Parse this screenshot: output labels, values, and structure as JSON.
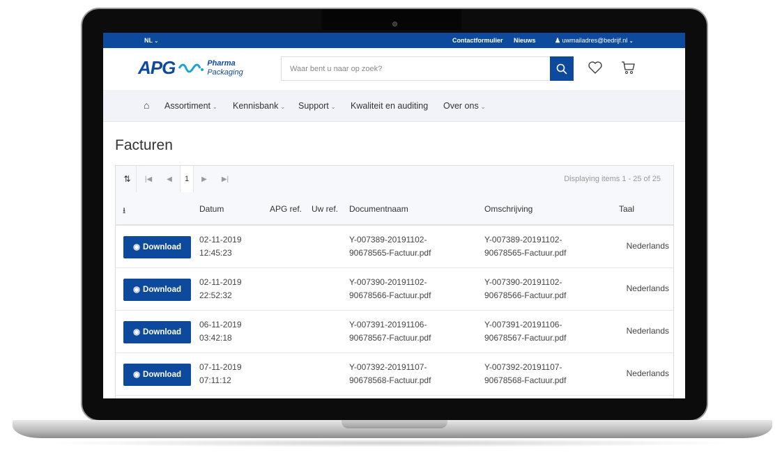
{
  "topbar": {
    "language": "NL",
    "contact": "Contactformulier",
    "news": "Nieuws",
    "user_email": "uwmailadres@bedrijf.nl"
  },
  "header": {
    "logo_main": "APG",
    "logo_line1": "Pharma",
    "logo_line2": "Packaging",
    "search_placeholder": "Waar bent u naar op zoek?"
  },
  "nav": {
    "items": [
      {
        "label": "Assortiment"
      },
      {
        "label": "Kennisbank"
      },
      {
        "label": "Support"
      },
      {
        "label": "Kwaliteit en auditing"
      },
      {
        "label": "Over ons"
      }
    ]
  },
  "page": {
    "title": "Facturen"
  },
  "table": {
    "current_page": "1",
    "info": "Displaying items 1 - 25 of 25",
    "columns": {
      "datum": "Datum",
      "apg_ref": "APG ref.",
      "uw_ref": "Uw ref.",
      "documentnaam": "Documentnaam",
      "omschrijving": "Omschrijving",
      "taal": "Taal"
    },
    "download_label": "Download",
    "rows": [
      {
        "date": "02-11-2019",
        "time": "12:45:23",
        "doc1": "Y-007389-20191102-",
        "doc2": "90678565-Factuur.pdf",
        "desc1": "Y-007389-20191102-",
        "desc2": "90678565-Factuur.pdf",
        "lang": "Nederlands"
      },
      {
        "date": "02-11-2019",
        "time": "22:52:32",
        "doc1": "Y-007390-20191102-",
        "doc2": "90678566-Factuur.pdf",
        "desc1": "Y-007390-20191102-",
        "desc2": "90678566-Factuur.pdf",
        "lang": "Nederlands"
      },
      {
        "date": "06-11-2019",
        "time": "03:42:18",
        "doc1": "Y-007391-20191106-",
        "doc2": "90678567-Factuur.pdf",
        "desc1": "Y-007391-20191106-",
        "desc2": "90678567-Factuur.pdf",
        "lang": "Nederlands"
      },
      {
        "date": "07-11-2019",
        "time": "07:11:12",
        "doc1": "Y-007392-20191107-",
        "doc2": "90678568-Factuur.pdf",
        "desc1": "Y-007392-20191107-",
        "desc2": "90678568-Factuur.pdf",
        "lang": "Nederlands"
      }
    ]
  },
  "colors": {
    "brand": "#0d4a9e",
    "nav_bg": "#f2f3f8"
  }
}
